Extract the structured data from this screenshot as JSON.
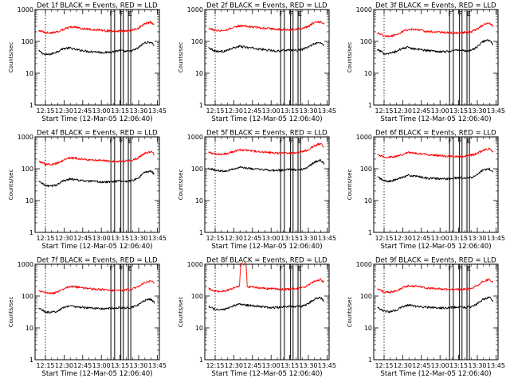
{
  "figure": {
    "common_xlabel": "Start Time (12-Mar-05 12:06:40)",
    "ylabel": "Counts/sec",
    "x_ticks": [
      "12:15",
      "12:30",
      "12:45",
      "13:00",
      "13:15",
      "13:30",
      "13:45"
    ],
    "y_ticks": [
      "1",
      "10",
      "100",
      "1000"
    ],
    "flag_letters": [
      "F",
      "F",
      "E"
    ],
    "colors": {
      "events": "#000000",
      "lld": "#ff0000",
      "axes": "#000000"
    }
  },
  "chart_data": [
    {
      "type": "line",
      "title": "Det 1f BLACK = Events, RED = LLD",
      "x_range_min_after_start": [
        0,
        100
      ],
      "ylim": [
        1,
        1000
      ],
      "yscale": "log",
      "grid": false,
      "series": [
        {
          "name": "Events",
          "x": [
            3,
            8,
            13,
            18,
            23,
            28,
            33,
            38,
            43,
            48,
            53,
            58,
            63,
            68,
            73,
            78,
            83,
            88,
            93,
            96
          ],
          "values": [
            50,
            38,
            40,
            48,
            60,
            62,
            55,
            52,
            48,
            48,
            45,
            45,
            48,
            52,
            48,
            50,
            62,
            90,
            95,
            75
          ]
        },
        {
          "name": "LLD",
          "x": [
            3,
            8,
            13,
            18,
            23,
            28,
            33,
            38,
            43,
            48,
            53,
            58,
            63,
            68,
            73,
            78,
            83,
            88,
            93,
            96
          ],
          "values": [
            220,
            190,
            185,
            200,
            240,
            280,
            275,
            255,
            240,
            235,
            225,
            215,
            210,
            210,
            215,
            225,
            260,
            350,
            400,
            330
          ]
        }
      ]
    },
    {
      "type": "line",
      "title": "Det 2f BLACK = Events, RED = LLD",
      "x_range_min_after_start": [
        0,
        100
      ],
      "ylim": [
        1,
        1000
      ],
      "yscale": "log",
      "grid": false,
      "series": [
        {
          "name": "Events",
          "x": [
            3,
            8,
            13,
            18,
            23,
            28,
            33,
            38,
            43,
            48,
            53,
            58,
            63,
            68,
            73,
            78,
            83,
            88,
            93,
            96
          ],
          "values": [
            65,
            50,
            48,
            52,
            62,
            70,
            65,
            62,
            58,
            55,
            52,
            50,
            52,
            55,
            52,
            55,
            65,
            85,
            90,
            75
          ]
        },
        {
          "name": "LLD",
          "x": [
            3,
            8,
            13,
            18,
            23,
            28,
            33,
            38,
            43,
            48,
            53,
            58,
            63,
            68,
            73,
            78,
            83,
            88,
            93,
            96
          ],
          "values": [
            260,
            225,
            220,
            235,
            275,
            310,
            300,
            285,
            270,
            260,
            250,
            240,
            235,
            235,
            240,
            255,
            290,
            380,
            420,
            350
          ]
        }
      ]
    },
    {
      "type": "line",
      "title": "Det 3f BLACK = Events, RED = LLD",
      "x_range_min_after_start": [
        0,
        100
      ],
      "ylim": [
        1,
        1000
      ],
      "yscale": "log",
      "grid": false,
      "series": [
        {
          "name": "Events",
          "x": [
            3,
            8,
            13,
            18,
            23,
            28,
            33,
            38,
            43,
            48,
            53,
            58,
            63,
            68,
            73,
            78,
            83,
            88,
            93,
            96
          ],
          "values": [
            55,
            42,
            42,
            48,
            60,
            65,
            58,
            55,
            52,
            50,
            48,
            48,
            50,
            55,
            50,
            52,
            65,
            100,
            110,
            80
          ]
        },
        {
          "name": "LLD",
          "x": [
            3,
            8,
            13,
            18,
            23,
            28,
            33,
            38,
            43,
            48,
            53,
            58,
            63,
            68,
            73,
            78,
            83,
            88,
            93,
            96
          ],
          "values": [
            180,
            150,
            145,
            160,
            200,
            240,
            235,
            220,
            205,
            200,
            195,
            190,
            185,
            185,
            190,
            200,
            240,
            330,
            380,
            310
          ]
        }
      ]
    },
    {
      "type": "line",
      "title": "Det 4f BLACK = Events, RED = LLD",
      "x_range_min_after_start": [
        0,
        100
      ],
      "ylim": [
        1,
        1000
      ],
      "yscale": "log",
      "grid": false,
      "series": [
        {
          "name": "Events",
          "x": [
            3,
            8,
            13,
            18,
            23,
            28,
            33,
            38,
            43,
            48,
            53,
            58,
            63,
            68,
            73,
            78,
            83,
            88,
            93,
            96
          ],
          "values": [
            40,
            30,
            28,
            32,
            42,
            48,
            45,
            42,
            40,
            40,
            38,
            38,
            40,
            42,
            40,
            42,
            50,
            75,
            85,
            65
          ]
        },
        {
          "name": "LLD",
          "x": [
            3,
            8,
            13,
            18,
            23,
            28,
            33,
            38,
            43,
            48,
            53,
            58,
            63,
            68,
            73,
            78,
            83,
            88,
            93,
            96
          ],
          "values": [
            170,
            140,
            135,
            150,
            185,
            220,
            215,
            200,
            190,
            185,
            180,
            175,
            170,
            170,
            175,
            185,
            220,
            300,
            340,
            280
          ]
        }
      ]
    },
    {
      "type": "line",
      "title": "Det 5f BLACK = Events, RED = LLD",
      "x_range_min_after_start": [
        0,
        100
      ],
      "ylim": [
        1,
        1000
      ],
      "yscale": "log",
      "grid": false,
      "series": [
        {
          "name": "Events",
          "x": [
            3,
            8,
            13,
            18,
            23,
            28,
            33,
            38,
            43,
            48,
            53,
            58,
            63,
            68,
            73,
            78,
            83,
            88,
            93,
            96
          ],
          "values": [
            105,
            90,
            85,
            88,
            98,
            110,
            105,
            100,
            95,
            92,
            90,
            88,
            90,
            95,
            92,
            95,
            110,
            160,
            190,
            140
          ]
        },
        {
          "name": "LLD",
          "x": [
            3,
            8,
            13,
            18,
            23,
            28,
            33,
            38,
            43,
            48,
            53,
            58,
            63,
            68,
            73,
            78,
            83,
            88,
            93,
            96
          ],
          "values": [
            330,
            290,
            285,
            300,
            340,
            390,
            380,
            360,
            345,
            335,
            320,
            310,
            305,
            310,
            320,
            340,
            390,
            520,
            620,
            480
          ]
        }
      ]
    },
    {
      "type": "line",
      "title": "Det 6f BLACK = Events, RED = LLD",
      "x_range_min_after_start": [
        0,
        100
      ],
      "ylim": [
        1,
        1000
      ],
      "yscale": "log",
      "grid": false,
      "series": [
        {
          "name": "Events",
          "x": [
            3,
            8,
            13,
            18,
            23,
            28,
            33,
            38,
            43,
            48,
            53,
            58,
            63,
            68,
            73,
            78,
            83,
            88,
            93,
            96
          ],
          "values": [
            55,
            42,
            40,
            45,
            55,
            62,
            58,
            55,
            50,
            50,
            48,
            48,
            50,
            52,
            50,
            52,
            62,
            90,
            100,
            75
          ]
        },
        {
          "name": "LLD",
          "x": [
            3,
            8,
            13,
            18,
            23,
            28,
            33,
            38,
            43,
            48,
            53,
            58,
            63,
            68,
            73,
            78,
            83,
            88,
            93,
            96
          ],
          "values": [
            270,
            235,
            230,
            245,
            280,
            320,
            310,
            295,
            280,
            270,
            260,
            250,
            245,
            245,
            250,
            265,
            300,
            380,
            420,
            350
          ]
        }
      ]
    },
    {
      "type": "line",
      "title": "Det 7f BLACK = Events, RED = LLD",
      "x_range_min_after_start": [
        0,
        100
      ],
      "ylim": [
        1,
        1000
      ],
      "yscale": "log",
      "grid": false,
      "series": [
        {
          "name": "Events",
          "x": [
            3,
            8,
            13,
            18,
            23,
            28,
            33,
            38,
            43,
            48,
            53,
            58,
            63,
            68,
            73,
            78,
            83,
            88,
            93,
            96
          ],
          "values": [
            42,
            32,
            30,
            34,
            44,
            50,
            46,
            44,
            42,
            42,
            40,
            40,
            42,
            44,
            42,
            44,
            52,
            72,
            80,
            62
          ]
        },
        {
          "name": "LLD",
          "x": [
            3,
            8,
            13,
            18,
            23,
            28,
            33,
            38,
            43,
            48,
            53,
            58,
            63,
            68,
            73,
            78,
            83,
            88,
            93,
            96
          ],
          "values": [
            150,
            125,
            120,
            135,
            165,
            200,
            195,
            180,
            170,
            165,
            160,
            155,
            150,
            150,
            155,
            165,
            195,
            260,
            300,
            245
          ]
        }
      ]
    },
    {
      "type": "line",
      "title": "Det 8f BLACK = Events, RED = LLD",
      "x_range_min_after_start": [
        0,
        100
      ],
      "ylim": [
        1,
        1000
      ],
      "yscale": "log",
      "grid": false,
      "series": [
        {
          "name": "Events",
          "x": [
            3,
            8,
            13,
            18,
            23,
            28,
            33,
            38,
            43,
            48,
            53,
            58,
            63,
            68,
            73,
            78,
            83,
            88,
            93,
            96
          ],
          "values": [
            48,
            38,
            36,
            40,
            50,
            56,
            52,
            50,
            48,
            46,
            44,
            44,
            46,
            48,
            46,
            48,
            56,
            80,
            90,
            70
          ]
        },
        {
          "name": "LLD",
          "x": [
            3,
            8,
            13,
            18,
            23,
            28,
            29,
            33,
            34,
            38,
            43,
            48,
            53,
            58,
            63,
            68,
            73,
            78,
            83,
            88,
            93,
            96
          ],
          "values": [
            170,
            145,
            140,
            150,
            180,
            200,
            1000,
            1000,
            200,
            190,
            180,
            175,
            170,
            165,
            165,
            165,
            170,
            180,
            210,
            290,
            330,
            270
          ]
        }
      ]
    },
    {
      "type": "line",
      "title": "Det 9f BLACK = Events, RED = LLD",
      "x_range_min_after_start": [
        0,
        100
      ],
      "ylim": [
        1,
        1000
      ],
      "yscale": "log",
      "grid": false,
      "series": [
        {
          "name": "Events",
          "x": [
            3,
            8,
            13,
            18,
            23,
            28,
            33,
            38,
            43,
            48,
            53,
            58,
            63,
            68,
            73,
            78,
            83,
            88,
            93,
            96
          ],
          "values": [
            44,
            34,
            32,
            36,
            46,
            52,
            48,
            46,
            44,
            44,
            42,
            42,
            44,
            46,
            44,
            46,
            55,
            80,
            92,
            68
          ]
        },
        {
          "name": "LLD",
          "x": [
            3,
            8,
            13,
            18,
            23,
            28,
            33,
            38,
            43,
            48,
            53,
            58,
            63,
            68,
            73,
            78,
            83,
            88,
            93,
            96
          ],
          "values": [
            165,
            135,
            130,
            145,
            180,
            215,
            205,
            190,
            180,
            175,
            170,
            165,
            160,
            160,
            165,
            175,
            210,
            290,
            330,
            270
          ]
        }
      ]
    }
  ]
}
